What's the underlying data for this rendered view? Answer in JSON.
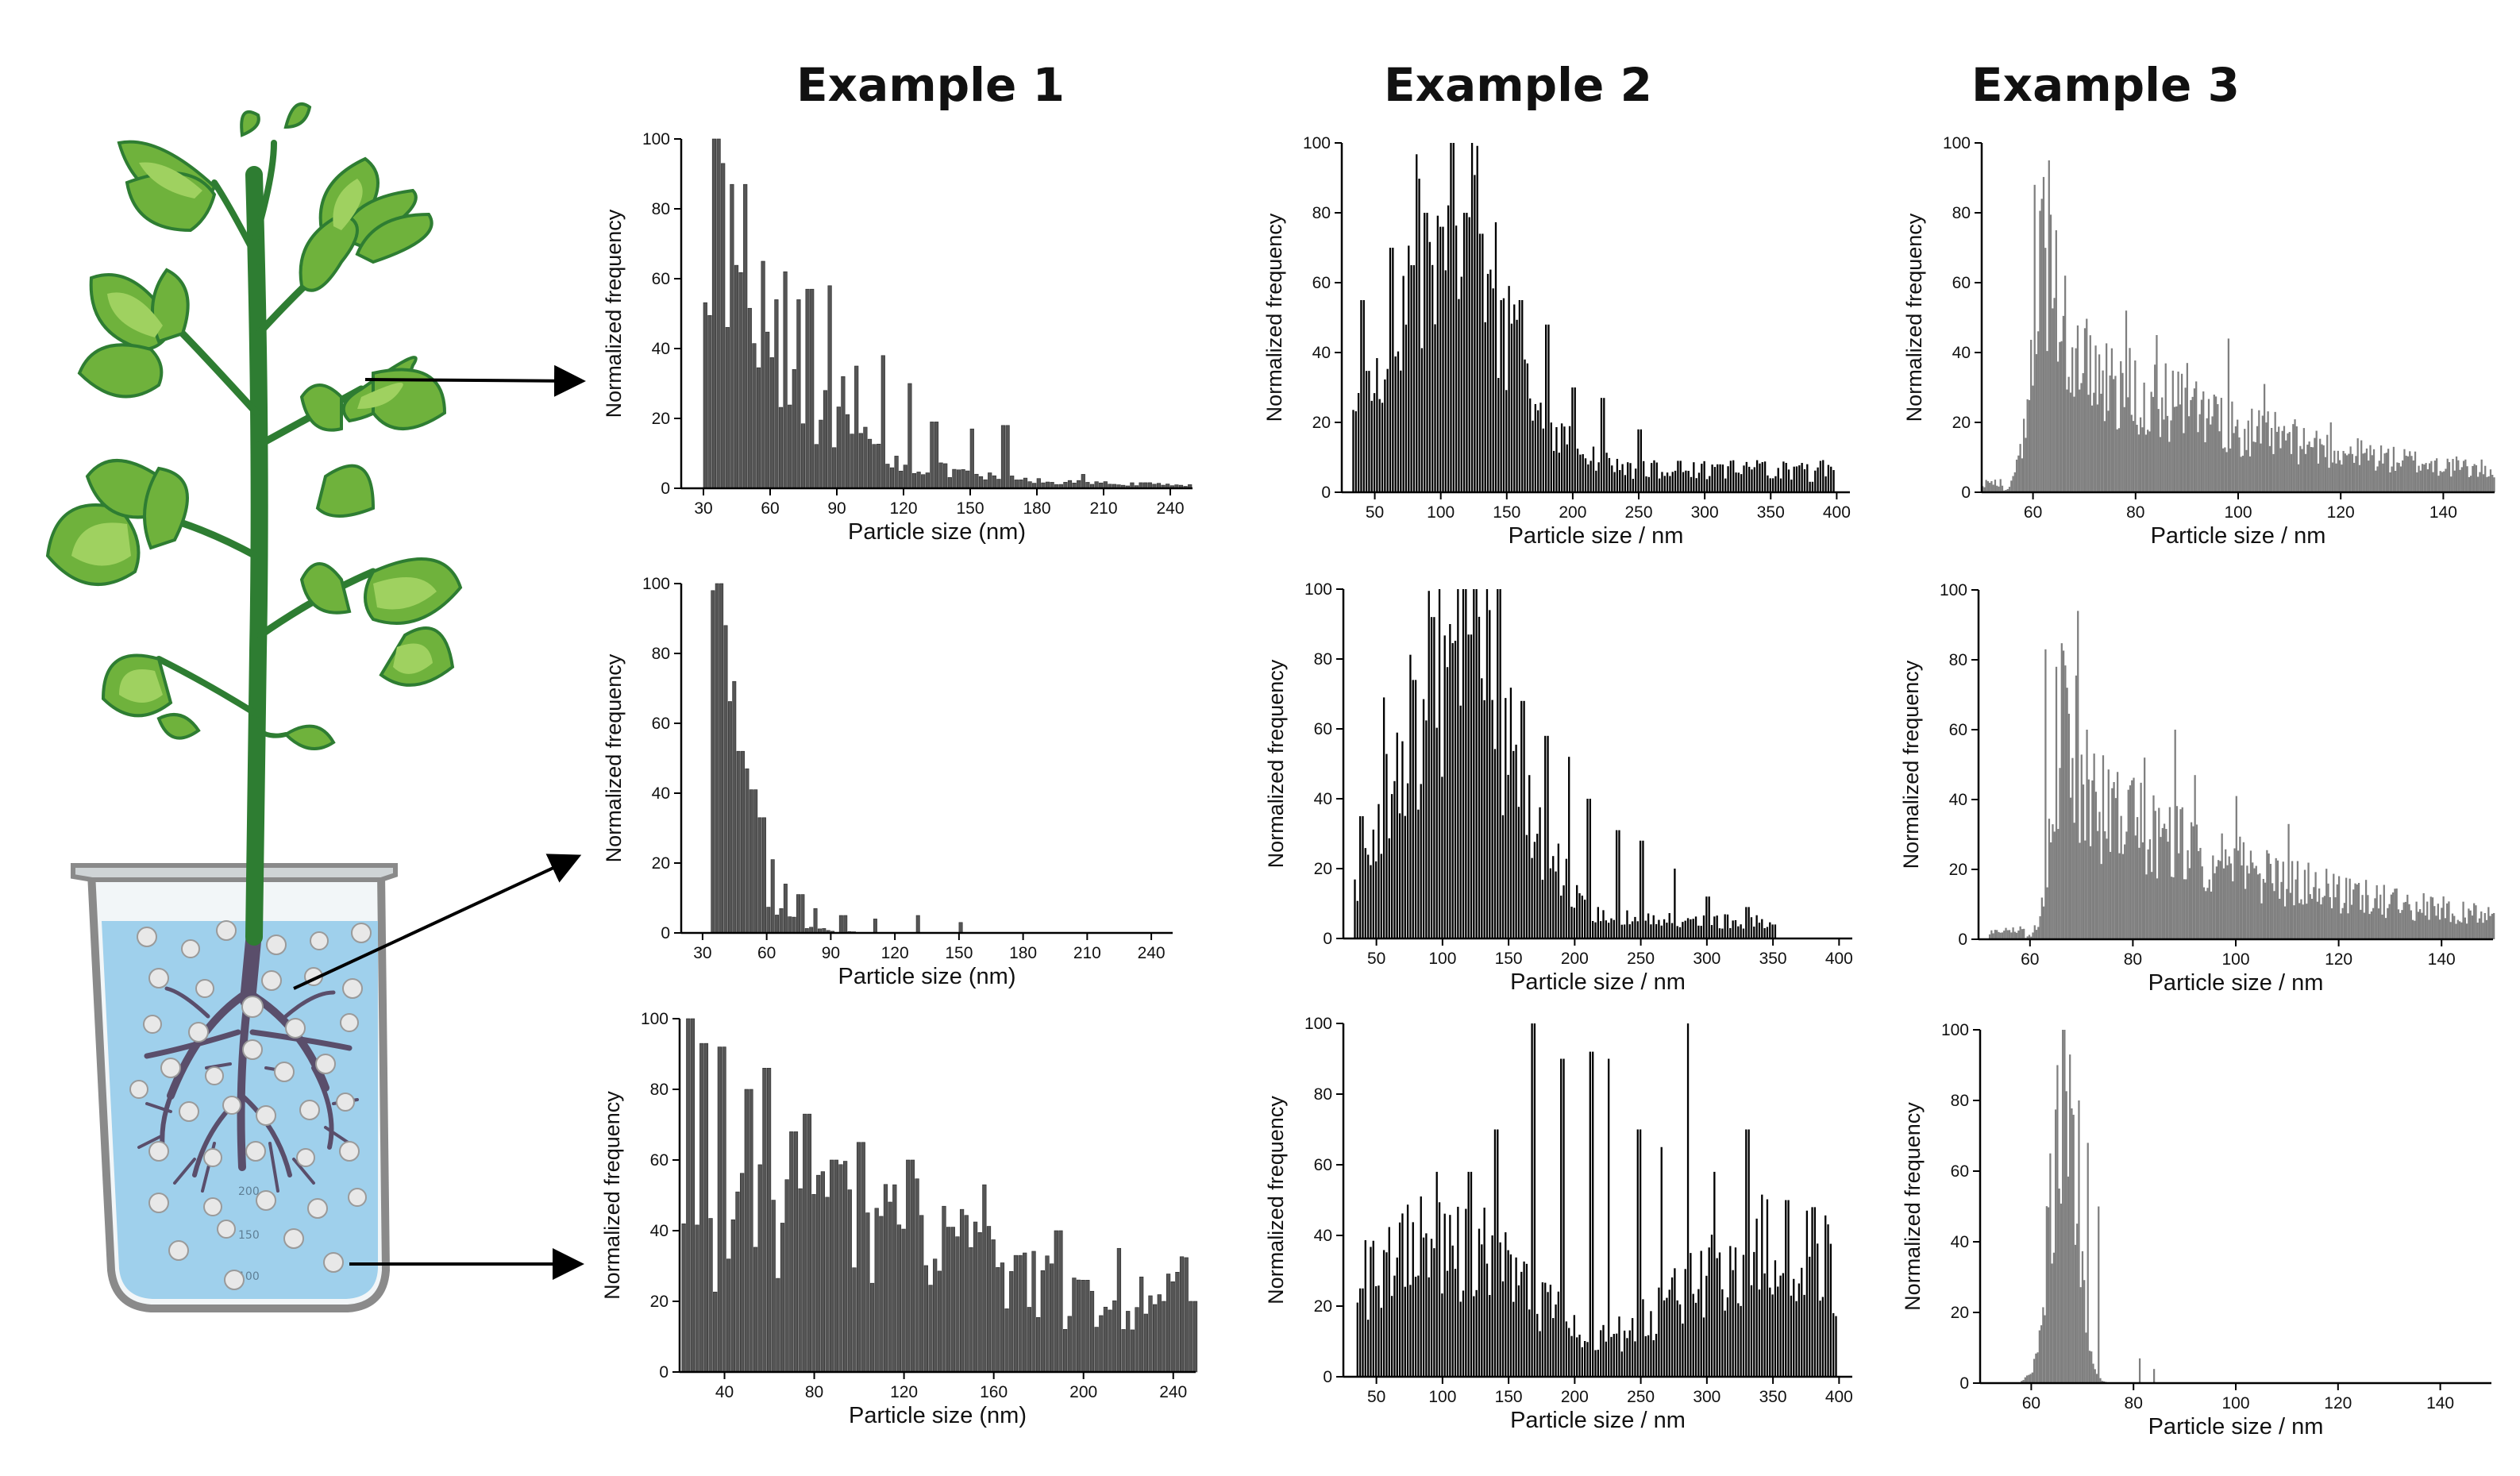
{
  "columns": [
    "Example 1",
    "Example 2",
    "Example 3"
  ],
  "arrow_targets": [
    "leaf",
    "root",
    "solution"
  ],
  "beaker_scale_labels": [
    "200",
    "150",
    "100"
  ],
  "colors": {
    "plant_dark": "#2e7d32",
    "leaf_mid": "#6fb23c",
    "leaf_light": "#9fd160",
    "water": "#9fd0ec",
    "root": "#5a4e6b",
    "particle": "#e8e8e8",
    "bar_ex1": "#555555",
    "bar_ex2": "#000000",
    "bar_ex3": "#7f7f7f"
  },
  "chart_data": [
    {
      "id": "ex1-leaf",
      "type": "bar",
      "example": "Example 1",
      "row": "leaf",
      "xlabel": "Particle size (nm)",
      "ylabel": "Normalized frequency",
      "xlim": [
        20,
        250
      ],
      "ylim": [
        0,
        100
      ],
      "xticks": [
        30,
        60,
        90,
        120,
        150,
        180,
        210,
        240
      ],
      "yticks": [
        0,
        20,
        40,
        60,
        80,
        100
      ],
      "bar_color": "#555555",
      "bin_width": 2,
      "x_start": 30,
      "x_end": 248,
      "profile": "decay",
      "peak": 33,
      "scale": 35,
      "baseline": 1,
      "spikes": [
        [
          35,
          100
        ],
        [
          37,
          93
        ],
        [
          42,
          87
        ],
        [
          48,
          87
        ],
        [
          56,
          65
        ],
        [
          62,
          54
        ],
        [
          66,
          62
        ],
        [
          72,
          54
        ],
        [
          77,
          57
        ],
        [
          86,
          58
        ],
        [
          92,
          32
        ],
        [
          98,
          35
        ],
        [
          110,
          38
        ],
        [
          122,
          30
        ],
        [
          133,
          19
        ],
        [
          150,
          17
        ],
        [
          165,
          18
        ],
        [
          200,
          4
        ]
      ]
    },
    {
      "id": "ex1-root",
      "type": "bar",
      "example": "Example 1",
      "row": "root",
      "xlabel": "Particle size (nm)",
      "ylabel": "Normalized frequency",
      "xlim": [
        20,
        250
      ],
      "ylim": [
        0,
        100
      ],
      "xticks": [
        30,
        60,
        90,
        120,
        150,
        180,
        210,
        240
      ],
      "yticks": [
        0,
        20,
        40,
        60,
        80,
        100
      ],
      "bar_color": "#555555",
      "bin_width": 2,
      "x_start": 34,
      "x_end": 210,
      "profile": "decay",
      "peak": 36,
      "scale": 11,
      "baseline": 0,
      "spikes": [
        [
          35,
          98
        ],
        [
          37,
          100
        ],
        [
          40,
          88
        ],
        [
          44,
          72
        ],
        [
          47,
          52
        ],
        [
          50,
          47
        ],
        [
          53,
          41
        ],
        [
          57,
          33
        ],
        [
          62,
          21
        ],
        [
          68,
          14
        ],
        [
          75,
          11
        ],
        [
          82,
          7
        ],
        [
          95,
          5
        ],
        [
          110,
          4
        ],
        [
          130,
          5
        ],
        [
          150,
          3
        ]
      ]
    },
    {
      "id": "ex1-solution",
      "type": "bar",
      "example": "Example 1",
      "row": "solution",
      "xlabel": "Particle size (nm)",
      "ylabel": "Normalized frequency",
      "xlim": [
        20,
        250
      ],
      "ylim": [
        0,
        100
      ],
      "xticks": [
        40,
        80,
        120,
        160,
        200,
        240
      ],
      "yticks": [
        0,
        20,
        40,
        60,
        80,
        100
      ],
      "bar_color": "#555555",
      "bin_width": 2,
      "x_start": 21,
      "x_end": 249,
      "profile": "flat",
      "peak": 20,
      "scale": 240,
      "baseline": 40,
      "spikes": [
        [
          24,
          100
        ],
        [
          30,
          93
        ],
        [
          38,
          92
        ],
        [
          50,
          80
        ],
        [
          58,
          86
        ],
        [
          70,
          68
        ],
        [
          76,
          73
        ],
        [
          88,
          60
        ],
        [
          100,
          65
        ],
        [
          115,
          53
        ],
        [
          122,
          60
        ],
        [
          140,
          41
        ],
        [
          155,
          53
        ],
        [
          170,
          33
        ],
        [
          188,
          40
        ],
        [
          200,
          26
        ],
        [
          215,
          35
        ],
        [
          235,
          20
        ],
        [
          248,
          20
        ]
      ]
    },
    {
      "id": "ex2-leaf",
      "type": "bar",
      "example": "Example 2",
      "row": "leaf",
      "xlabel": "Particle size / nm",
      "ylabel": "Normalized frequency",
      "xlim": [
        25,
        410
      ],
      "ylim": [
        0,
        100
      ],
      "xticks": [
        50,
        100,
        150,
        200,
        250,
        300,
        350,
        400
      ],
      "yticks": [
        0,
        20,
        40,
        60,
        80,
        100
      ],
      "bar_color": "#000000",
      "bin_width": 2,
      "x_start": 33,
      "x_end": 398,
      "profile": "gauss",
      "peak": 108,
      "scale": 58,
      "baseline": 8,
      "spikes": [
        [
          40,
          55
        ],
        [
          62,
          70
        ],
        [
          78,
          65
        ],
        [
          88,
          80
        ],
        [
          100,
          76
        ],
        [
          108,
          100
        ],
        [
          118,
          80
        ],
        [
          130,
          74
        ],
        [
          145,
          55
        ],
        [
          160,
          55
        ],
        [
          180,
          48
        ],
        [
          200,
          30
        ],
        [
          222,
          27
        ],
        [
          250,
          18
        ],
        [
          280,
          9
        ],
        [
          310,
          8
        ],
        [
          350,
          4
        ],
        [
          380,
          3
        ]
      ]
    },
    {
      "id": "ex2-root",
      "type": "bar",
      "example": "Example 2",
      "row": "root",
      "xlabel": "Particle size / nm",
      "ylabel": "Normalized frequency",
      "xlim": [
        25,
        410
      ],
      "ylim": [
        0,
        100
      ],
      "xticks": [
        50,
        100,
        150,
        200,
        250,
        300,
        350,
        400
      ],
      "yticks": [
        0,
        20,
        40,
        60,
        80,
        100
      ],
      "bar_color": "#000000",
      "bin_width": 2,
      "x_start": 33,
      "x_end": 352,
      "profile": "gauss",
      "peak": 112,
      "scale": 58,
      "baseline": 6,
      "spikes": [
        [
          38,
          35
        ],
        [
          55,
          69
        ],
        [
          78,
          74
        ],
        [
          92,
          92
        ],
        [
          105,
          90
        ],
        [
          120,
          87
        ],
        [
          135,
          94
        ],
        [
          142,
          100
        ],
        [
          160,
          68
        ],
        [
          178,
          58
        ],
        [
          195,
          52
        ],
        [
          210,
          40
        ],
        [
          232,
          31
        ],
        [
          250,
          28
        ],
        [
          275,
          20
        ],
        [
          300,
          12
        ],
        [
          330,
          9
        ],
        [
          350,
          4
        ]
      ]
    },
    {
      "id": "ex2-solution",
      "type": "bar",
      "example": "Example 2",
      "row": "solution",
      "xlabel": "Particle size / nm",
      "ylabel": "Normalized frequency",
      "xlim": [
        25,
        410
      ],
      "ylim": [
        0,
        100
      ],
      "xticks": [
        50,
        100,
        150,
        200,
        250,
        300,
        350,
        400
      ],
      "yticks": [
        0,
        20,
        40,
        60,
        80,
        100
      ],
      "bar_color": "#000000",
      "bin_width": 2,
      "x_start": 35,
      "x_end": 398,
      "profile": "flat",
      "peak": 220,
      "scale": 300,
      "baseline": 30,
      "spikes": [
        [
          38,
          25
        ],
        [
          75,
          26
        ],
        [
          95,
          58
        ],
        [
          120,
          58
        ],
        [
          140,
          70
        ],
        [
          168,
          100
        ],
        [
          190,
          90
        ],
        [
          212,
          92
        ],
        [
          225,
          90
        ],
        [
          248,
          70
        ],
        [
          265,
          65
        ],
        [
          285,
          100
        ],
        [
          305,
          58
        ],
        [
          330,
          70
        ],
        [
          360,
          50
        ],
        [
          380,
          48
        ],
        [
          395,
          18
        ]
      ]
    },
    {
      "id": "ex3-leaf",
      "type": "bar",
      "example": "Example 3",
      "row": "leaf",
      "xlabel": "Particle size / nm",
      "ylabel": "Normalized frequency",
      "xlim": [
        50,
        150
      ],
      "ylim": [
        0,
        100
      ],
      "xticks": [
        60,
        80,
        100,
        120,
        140
      ],
      "yticks": [
        0,
        20,
        40,
        60,
        80,
        100
      ],
      "bar_color": "#7f7f7f",
      "bin_width": 0.35,
      "x_start": 50,
      "x_end": 150,
      "profile": "bimodal",
      "peak": 62,
      "scale": 3.5,
      "baseline": 0,
      "spikes": [
        [
          60,
          88
        ],
        [
          61.5,
          84
        ],
        [
          63,
          95
        ],
        [
          64.5,
          75
        ],
        [
          66,
          62
        ],
        [
          72,
          42
        ],
        [
          78,
          52
        ],
        [
          84,
          45
        ],
        [
          90,
          37
        ],
        [
          98,
          44
        ],
        [
          105,
          31
        ],
        [
          118,
          20
        ],
        [
          130,
          13
        ],
        [
          140,
          6
        ]
      ]
    },
    {
      "id": "ex3-root",
      "type": "bar",
      "example": "Example 3",
      "row": "root",
      "xlabel": "Particle size / nm",
      "ylabel": "Normalized frequency",
      "xlim": [
        50,
        150
      ],
      "ylim": [
        0,
        100
      ],
      "xticks": [
        60,
        80,
        100,
        120,
        140
      ],
      "yticks": [
        0,
        20,
        40,
        60,
        80,
        100
      ],
      "bar_color": "#7f7f7f",
      "bin_width": 0.35,
      "x_start": 52,
      "x_end": 150,
      "profile": "bimodal",
      "peak": 67,
      "scale": 3.5,
      "baseline": 0,
      "spikes": [
        [
          63,
          83
        ],
        [
          65,
          78
        ],
        [
          67,
          72
        ],
        [
          69,
          94
        ],
        [
          71,
          60
        ],
        [
          76,
          45
        ],
        [
          82,
          52
        ],
        [
          88,
          60
        ],
        [
          92,
          47
        ],
        [
          100,
          41
        ],
        [
          110,
          33
        ],
        [
          125,
          17
        ],
        [
          140,
          9
        ]
      ]
    },
    {
      "id": "ex3-solution",
      "type": "bar",
      "example": "Example 3",
      "row": "solution",
      "xlabel": "Particle size / nm",
      "ylabel": "Normalized frequency",
      "xlim": [
        50,
        150
      ],
      "ylim": [
        0,
        100
      ],
      "xticks": [
        60,
        80,
        100,
        120,
        140
      ],
      "yticks": [
        0,
        20,
        40,
        60,
        80,
        100
      ],
      "bar_color": "#7f7f7f",
      "bin_width": 0.35,
      "x_start": 52,
      "x_end": 150,
      "profile": "gauss",
      "peak": 66,
      "scale": 3.6,
      "baseline": 0,
      "spikes": [
        [
          66,
          100
        ],
        [
          67.5,
          93
        ],
        [
          65,
          90
        ],
        [
          69,
          80
        ],
        [
          71,
          68
        ],
        [
          73,
          50
        ],
        [
          81,
          7
        ],
        [
          84,
          4
        ]
      ]
    }
  ]
}
